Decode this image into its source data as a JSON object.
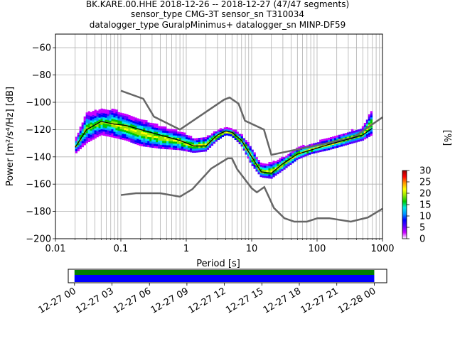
{
  "title": {
    "line1": "BK.KARE.00.HHE   2018-12-26 -- 2018-12-27  (47/47 segments)",
    "line2": "sensor_type CMG-3T sensor_sn T310034",
    "line3": "datalogger_type GuralpMinimus+ datalogger_sn MINP-DF59"
  },
  "chart_data": {
    "type": "heatmap",
    "title": "BK.KARE.00.HHE   2018-12-26 -- 2018-12-27  (47/47 segments)",
    "xlabel": "Period [s]",
    "ylabel": "Power [m²/s⁴/Hz] [dB]",
    "xscale": "log",
    "xlim": [
      0.01,
      1000
    ],
    "ylim": [
      -200,
      -50
    ],
    "x_ticks": [
      0.01,
      0.1,
      1,
      10,
      100,
      1000
    ],
    "x_tick_labels": [
      "0.01",
      "0.1",
      "1",
      "10",
      "100",
      "1000"
    ],
    "y_ticks": [
      -200,
      -180,
      -160,
      -140,
      -120,
      -100,
      -80,
      -60
    ],
    "y_tick_labels": [
      "−200",
      "−180",
      "−160",
      "−140",
      "−120",
      "−100",
      "−80",
      "−60"
    ],
    "grid": true,
    "colorbar": {
      "label": "[%]",
      "ticks": [
        0,
        5,
        10,
        15,
        20,
        25,
        30
      ],
      "tick_labels": [
        "0",
        "5",
        "10",
        "15",
        "20",
        "25",
        "30"
      ],
      "range": [
        0,
        30
      ],
      "colors": [
        "#ffffff",
        "#c800ff",
        "#5a00ff",
        "#0000ff",
        "#0096ff",
        "#00e6e6",
        "#00c800",
        "#96e600",
        "#ffff00",
        "#ff9600",
        "#ff0000",
        "#960000"
      ]
    },
    "mean_curve": [
      [
        0.02,
        -133
      ],
      [
        0.03,
        -120
      ],
      [
        0.05,
        -114
      ],
      [
        0.08,
        -116
      ],
      [
        0.12,
        -117
      ],
      [
        0.2,
        -120
      ],
      [
        0.4,
        -124
      ],
      [
        0.8,
        -128
      ],
      [
        1.3,
        -132
      ],
      [
        2,
        -132
      ],
      [
        3,
        -124
      ],
      [
        4,
        -121
      ],
      [
        5,
        -122
      ],
      [
        7,
        -128
      ],
      [
        10,
        -140
      ],
      [
        14,
        -151
      ],
      [
        20,
        -152
      ],
      [
        30,
        -145
      ],
      [
        50,
        -138
      ],
      [
        80,
        -135
      ],
      [
        150,
        -131
      ],
      [
        300,
        -127
      ],
      [
        500,
        -124
      ],
      [
        700,
        -119
      ]
    ],
    "pdf_band": [
      [
        0.02,
        -138,
        -128
      ],
      [
        0.03,
        -130,
        -108
      ],
      [
        0.05,
        -124,
        -106
      ],
      [
        0.08,
        -126,
        -106
      ],
      [
        0.12,
        -128,
        -110
      ],
      [
        0.2,
        -132,
        -113
      ],
      [
        0.4,
        -134,
        -118
      ],
      [
        0.8,
        -135,
        -122
      ],
      [
        1.3,
        -137,
        -127
      ],
      [
        2,
        -136,
        -126
      ],
      [
        3,
        -128,
        -121
      ],
      [
        4,
        -124,
        -119
      ],
      [
        5,
        -125,
        -120
      ],
      [
        7,
        -132,
        -124
      ],
      [
        10,
        -146,
        -134
      ],
      [
        14,
        -155,
        -146
      ],
      [
        20,
        -156,
        -145
      ],
      [
        30,
        -150,
        -141
      ],
      [
        50,
        -142,
        -134
      ],
      [
        80,
        -138,
        -131
      ],
      [
        150,
        -135,
        -127
      ],
      [
        300,
        -131,
        -122
      ],
      [
        500,
        -128,
        -119
      ],
      [
        700,
        -124,
        -106
      ]
    ],
    "nhnm": [
      [
        0.1,
        -91.5
      ],
      [
        0.22,
        -97.4
      ],
      [
        0.32,
        -110.5
      ],
      [
        0.8,
        -120
      ],
      [
        3.8,
        -98
      ],
      [
        4.6,
        -96.5
      ],
      [
        6.3,
        -101
      ],
      [
        7.9,
        -113.5
      ],
      [
        15.4,
        -120
      ],
      [
        20,
        -138.5
      ],
      [
        354,
        -126
      ],
      [
        1000,
        -111
      ]
    ],
    "nlnm": [
      [
        0.1,
        -168
      ],
      [
        0.17,
        -166.7
      ],
      [
        0.4,
        -166.7
      ],
      [
        0.8,
        -169.2
      ],
      [
        1.24,
        -163.7
      ],
      [
        2.4,
        -148.6
      ],
      [
        4.3,
        -141.1
      ],
      [
        5,
        -141.1
      ],
      [
        6,
        -149
      ],
      [
        10,
        -163
      ],
      [
        12,
        -166
      ],
      [
        15.6,
        -162.1
      ],
      [
        21.9,
        -177.5
      ],
      [
        31.6,
        -185
      ],
      [
        45,
        -187.5
      ],
      [
        70,
        -187.5
      ],
      [
        101,
        -185
      ],
      [
        154,
        -185
      ],
      [
        328,
        -187.5
      ],
      [
        600,
        -184.4
      ],
      [
        1000,
        -178
      ]
    ],
    "time_axis": {
      "tick_labels": [
        "12-27 00",
        "12-27 03",
        "12-27 06",
        "12-27 09",
        "12-27 12",
        "12-27 15",
        "12-27 18",
        "12-27 21",
        "12-28 00"
      ],
      "range_hours": [
        -0.5,
        25
      ],
      "coverage_hours": [
        0,
        24
      ],
      "colors": [
        "#008000",
        "#0000ff"
      ]
    }
  }
}
